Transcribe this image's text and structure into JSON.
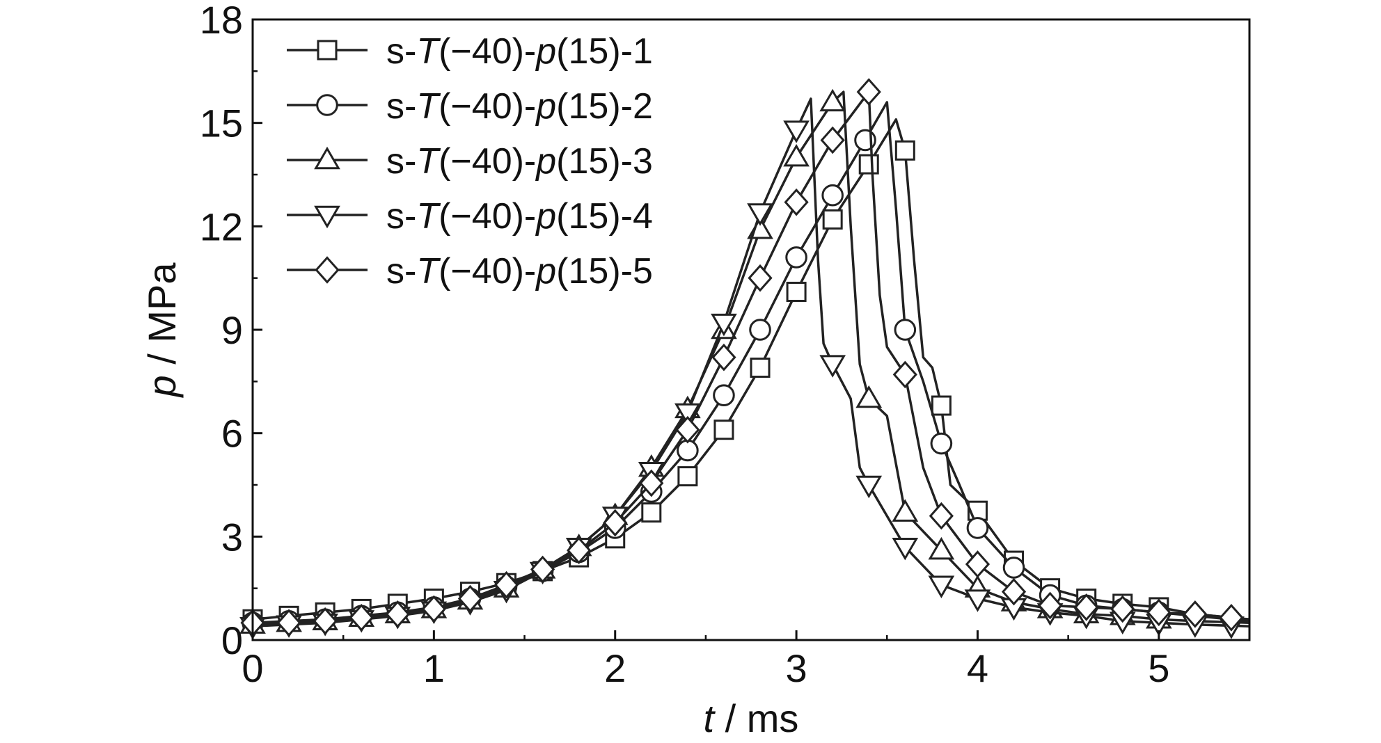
{
  "chart_data": {
    "type": "line",
    "title": "",
    "xlabel": {
      "var": "t",
      "unit": " / ms"
    },
    "ylabel": {
      "var": "p",
      "unit": " / MPa"
    },
    "xlim": [
      0,
      5.5
    ],
    "ylim": [
      0,
      18
    ],
    "xticks": [
      0,
      1,
      2,
      3,
      4,
      5
    ],
    "yticks": [
      0,
      3,
      6,
      9,
      12,
      15,
      18
    ],
    "xtick_labels": [
      "0",
      "1",
      "2",
      "3",
      "4",
      "5"
    ],
    "ytick_labels": [
      "0",
      "3",
      "6",
      "9",
      "12",
      "15",
      "18"
    ],
    "grid": false,
    "legend_position": "top-left",
    "line_color": "#222222",
    "series": [
      {
        "name": "s-T(−40)-p(15)-1",
        "label_parts": [
          "s-",
          "T",
          "(−40)-",
          "p",
          "(15)-1"
        ],
        "marker": "square",
        "points": [
          [
            0,
            0.6
          ],
          [
            0.2,
            0.7
          ],
          [
            0.4,
            0.8
          ],
          [
            0.6,
            0.9
          ],
          [
            0.8,
            1.05
          ],
          [
            1.0,
            1.2
          ],
          [
            1.2,
            1.4
          ],
          [
            1.4,
            1.65
          ],
          [
            1.6,
            2.0
          ],
          [
            1.8,
            2.4
          ],
          [
            2.0,
            2.95
          ],
          [
            2.2,
            3.7
          ],
          [
            2.4,
            4.75
          ],
          [
            2.6,
            6.1
          ],
          [
            2.8,
            7.9
          ],
          [
            3.0,
            10.1
          ],
          [
            3.2,
            12.2
          ],
          [
            3.4,
            13.8
          ],
          [
            3.55,
            15.1
          ],
          [
            3.6,
            14.2
          ],
          [
            3.65,
            11.0
          ],
          [
            3.7,
            8.2
          ],
          [
            3.75,
            7.9
          ],
          [
            3.8,
            6.8
          ],
          [
            3.85,
            4.5
          ],
          [
            4.0,
            3.75
          ],
          [
            4.2,
            2.3
          ],
          [
            4.4,
            1.5
          ],
          [
            4.6,
            1.2
          ],
          [
            4.8,
            1.05
          ],
          [
            5.0,
            0.95
          ],
          [
            5.2,
            0.75
          ],
          [
            5.4,
            0.65
          ],
          [
            5.5,
            0.6
          ]
        ],
        "marker_x": [
          0,
          0.2,
          0.4,
          0.6,
          0.8,
          1.0,
          1.2,
          1.4,
          1.6,
          1.8,
          2.0,
          2.2,
          2.4,
          2.6,
          2.8,
          3.0,
          3.2,
          3.4,
          3.6,
          3.8,
          4.0,
          4.2,
          4.4,
          4.6,
          4.8,
          5.0
        ]
      },
      {
        "name": "s-T(−40)-p(15)-2",
        "label_parts": [
          "s-",
          "T",
          "(−40)-",
          "p",
          "(15)-2"
        ],
        "marker": "circle",
        "points": [
          [
            0,
            0.5
          ],
          [
            0.2,
            0.55
          ],
          [
            0.4,
            0.6
          ],
          [
            0.6,
            0.7
          ],
          [
            0.8,
            0.8
          ],
          [
            1.0,
            0.95
          ],
          [
            1.2,
            1.2
          ],
          [
            1.4,
            1.55
          ],
          [
            1.6,
            2.0
          ],
          [
            1.8,
            2.55
          ],
          [
            2.0,
            3.25
          ],
          [
            2.2,
            4.3
          ],
          [
            2.4,
            5.5
          ],
          [
            2.6,
            7.1
          ],
          [
            2.8,
            9.0
          ],
          [
            3.0,
            11.1
          ],
          [
            3.2,
            12.9
          ],
          [
            3.38,
            14.5
          ],
          [
            3.5,
            15.6
          ],
          [
            3.55,
            12.5
          ],
          [
            3.6,
            9.0
          ],
          [
            3.7,
            7.5
          ],
          [
            3.8,
            5.7
          ],
          [
            3.9,
            4.5
          ],
          [
            4.0,
            3.25
          ],
          [
            4.2,
            2.1
          ],
          [
            4.4,
            1.3
          ],
          [
            4.6,
            1.0
          ],
          [
            4.8,
            0.9
          ],
          [
            5.0,
            0.8
          ],
          [
            5.2,
            0.7
          ],
          [
            5.5,
            0.55
          ]
        ],
        "marker_x": [
          0,
          0.2,
          0.4,
          0.6,
          0.8,
          1.0,
          1.2,
          1.4,
          1.6,
          1.8,
          2.0,
          2.2,
          2.4,
          2.6,
          2.8,
          3.0,
          3.2,
          3.38,
          3.6,
          3.8,
          4.0,
          4.2,
          4.4,
          4.6,
          4.8,
          5.0
        ]
      },
      {
        "name": "s-T(−40)-p(15)-3",
        "label_parts": [
          "s-",
          "T",
          "(−40)-",
          "p",
          "(15)-3"
        ],
        "marker": "triangle-up",
        "points": [
          [
            0,
            0.45
          ],
          [
            0.2,
            0.5
          ],
          [
            0.4,
            0.55
          ],
          [
            0.6,
            0.65
          ],
          [
            0.8,
            0.75
          ],
          [
            1.0,
            0.9
          ],
          [
            1.2,
            1.15
          ],
          [
            1.4,
            1.5
          ],
          [
            1.6,
            2.05
          ],
          [
            1.8,
            2.7
          ],
          [
            2.0,
            3.6
          ],
          [
            2.2,
            5.0
          ],
          [
            2.4,
            6.7
          ],
          [
            2.6,
            9.0
          ],
          [
            2.8,
            11.9
          ],
          [
            3.0,
            14.0
          ],
          [
            3.2,
            15.6
          ],
          [
            3.26,
            15.9
          ],
          [
            3.3,
            12.0
          ],
          [
            3.35,
            8.0
          ],
          [
            3.4,
            7.0
          ],
          [
            3.5,
            6.5
          ],
          [
            3.6,
            3.7
          ],
          [
            3.8,
            2.6
          ],
          [
            4.0,
            1.5
          ],
          [
            4.2,
            1.1
          ],
          [
            4.4,
            0.9
          ],
          [
            4.6,
            0.75
          ],
          [
            4.8,
            0.7
          ],
          [
            5.0,
            0.6
          ],
          [
            5.2,
            0.55
          ],
          [
            5.5,
            0.5
          ]
        ],
        "marker_x": [
          0,
          0.2,
          0.4,
          0.6,
          0.8,
          1.0,
          1.2,
          1.4,
          1.6,
          1.8,
          2.0,
          2.2,
          2.4,
          2.6,
          2.8,
          3.0,
          3.2,
          3.4,
          3.6,
          3.8,
          4.0,
          4.2,
          4.4,
          4.6,
          4.8,
          5.0
        ]
      },
      {
        "name": "s-T(−40)-p(15)-4",
        "label_parts": [
          "s-",
          "T",
          "(−40)-",
          "p",
          "(15)-4"
        ],
        "marker": "triangle-down",
        "points": [
          [
            0,
            0.4
          ],
          [
            0.2,
            0.45
          ],
          [
            0.4,
            0.5
          ],
          [
            0.6,
            0.6
          ],
          [
            0.8,
            0.7
          ],
          [
            1.0,
            0.85
          ],
          [
            1.2,
            1.1
          ],
          [
            1.4,
            1.45
          ],
          [
            1.6,
            2.0
          ],
          [
            1.8,
            2.7
          ],
          [
            2.0,
            3.6
          ],
          [
            2.2,
            4.9
          ],
          [
            2.4,
            6.6
          ],
          [
            2.6,
            9.2
          ],
          [
            2.8,
            12.4
          ],
          [
            3.0,
            14.8
          ],
          [
            3.08,
            15.7
          ],
          [
            3.12,
            11.0
          ],
          [
            3.15,
            8.6
          ],
          [
            3.2,
            8.0
          ],
          [
            3.3,
            7.0
          ],
          [
            3.35,
            5.0
          ],
          [
            3.4,
            4.5
          ],
          [
            3.6,
            2.7
          ],
          [
            3.8,
            1.6
          ],
          [
            4.0,
            1.2
          ],
          [
            4.2,
            0.95
          ],
          [
            4.4,
            0.8
          ],
          [
            4.6,
            0.7
          ],
          [
            4.8,
            0.55
          ],
          [
            5.0,
            0.5
          ],
          [
            5.2,
            0.45
          ],
          [
            5.5,
            0.4
          ]
        ],
        "marker_x": [
          0,
          0.2,
          0.4,
          0.6,
          0.8,
          1.0,
          1.2,
          1.4,
          1.6,
          1.8,
          2.0,
          2.2,
          2.4,
          2.6,
          2.8,
          3.0,
          3.2,
          3.4,
          3.6,
          3.8,
          4.0,
          4.2,
          4.4,
          4.6,
          4.8,
          5.0,
          5.2,
          5.4
        ]
      },
      {
        "name": "s-T(−40)-p(15)-5",
        "label_parts": [
          "s-",
          "T",
          "(−40)-",
          "p",
          "(15)-5"
        ],
        "marker": "diamond",
        "points": [
          [
            0,
            0.5
          ],
          [
            0.2,
            0.5
          ],
          [
            0.4,
            0.55
          ],
          [
            0.6,
            0.65
          ],
          [
            0.8,
            0.75
          ],
          [
            1.0,
            0.9
          ],
          [
            1.2,
            1.2
          ],
          [
            1.4,
            1.6
          ],
          [
            1.6,
            2.05
          ],
          [
            1.8,
            2.6
          ],
          [
            2.0,
            3.4
          ],
          [
            2.2,
            4.55
          ],
          [
            2.4,
            6.1
          ],
          [
            2.6,
            8.2
          ],
          [
            2.8,
            10.5
          ],
          [
            3.0,
            12.7
          ],
          [
            3.2,
            14.5
          ],
          [
            3.4,
            15.9
          ],
          [
            3.42,
            13.5
          ],
          [
            3.46,
            10.0
          ],
          [
            3.5,
            8.5
          ],
          [
            3.6,
            7.7
          ],
          [
            3.7,
            5.0
          ],
          [
            3.8,
            3.6
          ],
          [
            4.0,
            2.2
          ],
          [
            4.2,
            1.4
          ],
          [
            4.4,
            1.0
          ],
          [
            4.6,
            0.95
          ],
          [
            4.8,
            0.9
          ],
          [
            5.0,
            0.8
          ],
          [
            5.2,
            0.75
          ],
          [
            5.4,
            0.65
          ],
          [
            5.5,
            0.6
          ]
        ],
        "marker_x": [
          0,
          0.2,
          0.4,
          0.6,
          0.8,
          1.0,
          1.2,
          1.4,
          1.6,
          1.8,
          2.0,
          2.2,
          2.4,
          2.6,
          2.8,
          3.0,
          3.2,
          3.4,
          3.6,
          3.8,
          4.0,
          4.2,
          4.4,
          4.6,
          4.8,
          5.0,
          5.2,
          5.4
        ]
      }
    ]
  }
}
